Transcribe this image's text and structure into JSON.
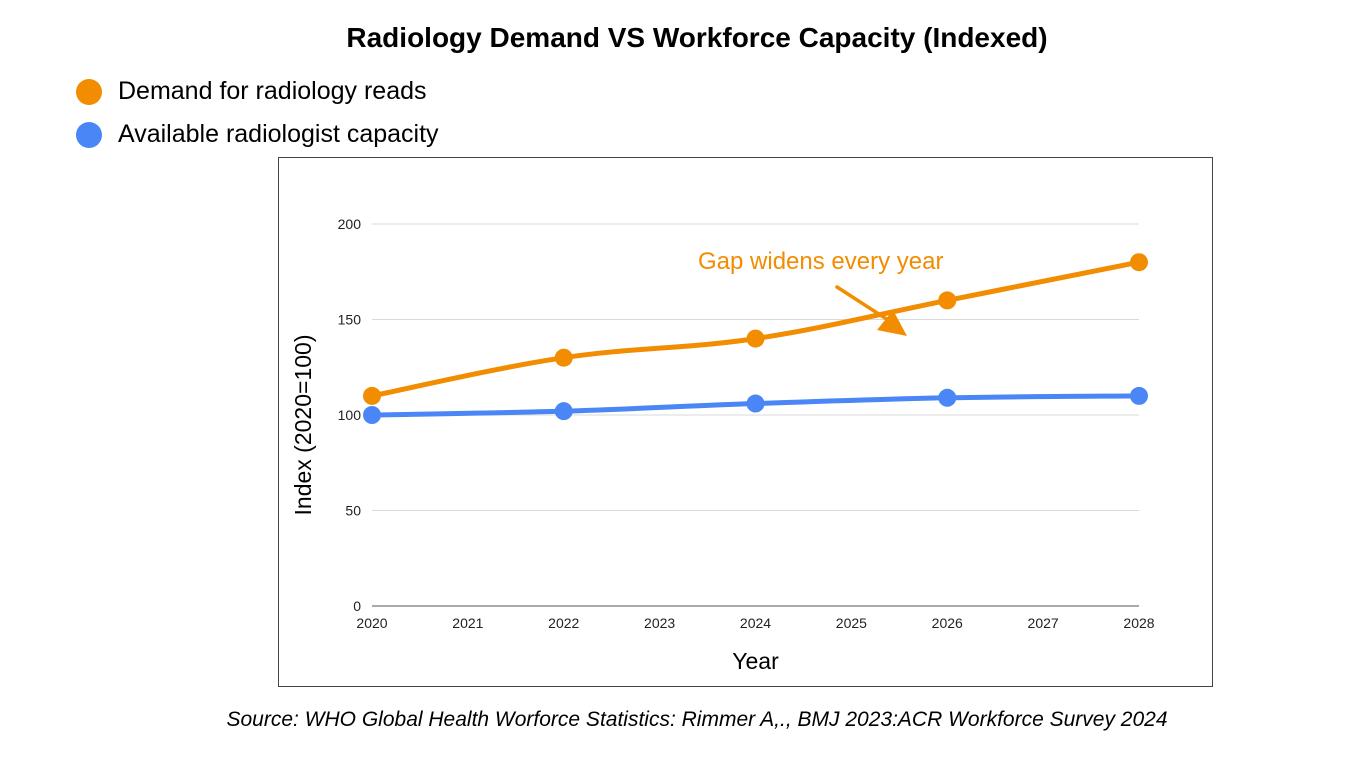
{
  "chart_data": {
    "type": "line",
    "title": "Radiology Demand VS Workforce Capacity (Indexed)",
    "xlabel": "Year",
    "ylabel": "Index (2020=100)",
    "categories": [
      "2020",
      "2021",
      "2022",
      "2023",
      "2024",
      "2025",
      "2026",
      "2027",
      "2028"
    ],
    "ylim": [
      0,
      200
    ],
    "yticks": [
      0,
      50,
      100,
      150,
      200
    ],
    "grid": true,
    "legend_position": "top-left",
    "series": [
      {
        "name": "Demand for radiology reads",
        "color": "#F28C00",
        "points": [
          [
            2020,
            110
          ],
          [
            2022,
            130
          ],
          [
            2024,
            140
          ],
          [
            2026,
            160
          ],
          [
            2028,
            180
          ]
        ]
      },
      {
        "name": "Available radiologist capacity",
        "color": "#4A86F5",
        "points": [
          [
            2020,
            100
          ],
          [
            2022,
            102
          ],
          [
            2024,
            106
          ],
          [
            2026,
            109
          ],
          [
            2028,
            110
          ]
        ]
      }
    ],
    "annotation": {
      "text": "Gap widens every year",
      "color": "#F28C00"
    },
    "source": "Source: WHO Global Health Worforce Statistics: Rimmer A,., BMJ 2023:ACR Workforce Survey 2024"
  }
}
